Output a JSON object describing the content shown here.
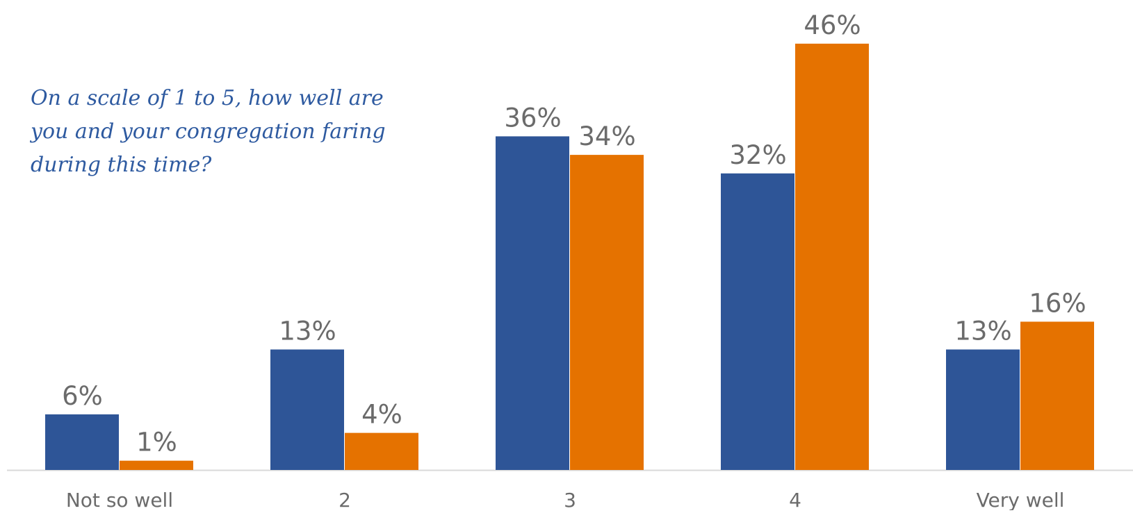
{
  "question": "On a scale of 1 to 5, how well are you and your congregation faring during this time?",
  "colors": {
    "series_a": "#2e5597",
    "series_b": "#e57200",
    "labels": "#6b6b6b",
    "axis": "#d9d9d9",
    "question": "#2e5aa0"
  },
  "chart_data": {
    "type": "bar",
    "title": "",
    "xlabel": "",
    "ylabel": "",
    "ylim": [
      0,
      46
    ],
    "grid": false,
    "legend": "none",
    "categories": [
      "Not so well",
      "2",
      "3",
      "4",
      "Very well"
    ],
    "series": [
      {
        "color": "#2e5597",
        "values": [
          6,
          13,
          36,
          32,
          13
        ],
        "labels": [
          "6%",
          "13%",
          "36%",
          "32%",
          "13%"
        ]
      },
      {
        "color": "#e57200",
        "values": [
          1,
          4,
          34,
          46,
          16
        ],
        "labels": [
          "1%",
          "4%",
          "34%",
          "46%",
          "16%"
        ]
      }
    ]
  }
}
